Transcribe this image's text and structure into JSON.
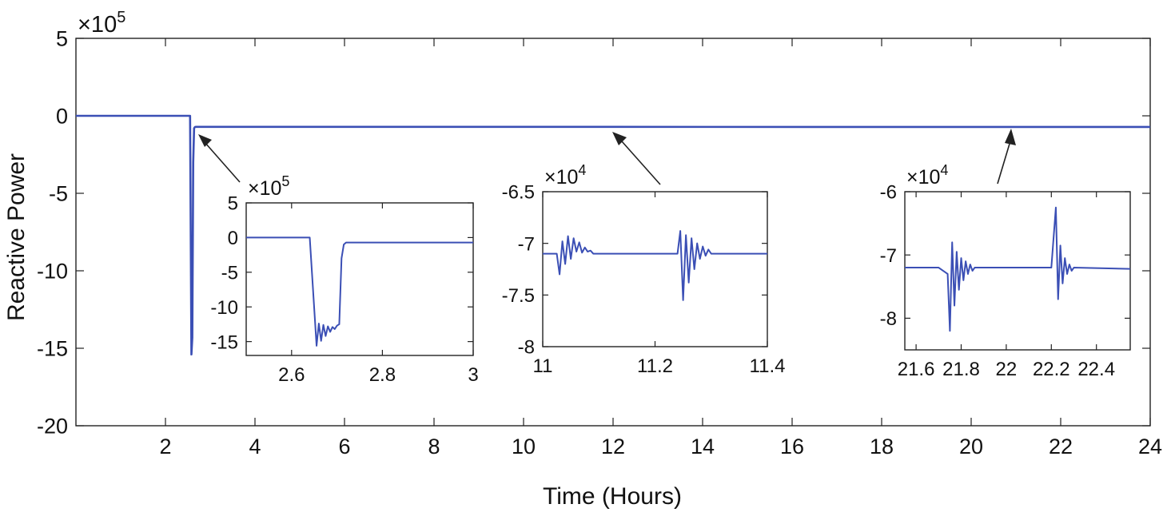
{
  "chart_data": {
    "type": "line",
    "xlabel": "Time (Hours)",
    "ylabel": "Reactive Power",
    "exponent_label": "×10",
    "exponent_power": "5",
    "xlim": [
      0,
      24
    ],
    "ylim": [
      -20,
      5
    ],
    "xticks": [
      "2",
      "4",
      "6",
      "8",
      "10",
      "12",
      "14",
      "16",
      "18",
      "20",
      "22",
      "24"
    ],
    "yticks": [
      "5",
      "0",
      "-5",
      "-10",
      "-15",
      "-20"
    ],
    "grid": false,
    "series": [
      {
        "color": "#3b4fb5",
        "x": [
          0,
          2.55,
          2.58,
          2.6,
          2.62,
          2.64,
          2.66,
          2.68,
          24
        ],
        "y": [
          0,
          0,
          -15.4,
          -14.3,
          -3,
          -0.8,
          -0.72,
          -0.71,
          -0.72
        ]
      }
    ],
    "insets": [
      {
        "exponent_label": "×10",
        "exponent_power": "5",
        "xlim": [
          2.5,
          3.0
        ],
        "ylim": [
          -17,
          5
        ],
        "xticks": [
          "2.6",
          "2.8",
          "3"
        ],
        "yticks": [
          "5",
          "0",
          "-5",
          "-10",
          "-15"
        ],
        "x": [
          2.5,
          2.64,
          2.655,
          2.66,
          2.665,
          2.67,
          2.675,
          2.68,
          2.685,
          2.69,
          2.695,
          2.7,
          2.705,
          2.71,
          2.715,
          2.72,
          3.0
        ],
        "y": [
          0,
          0,
          -15.6,
          -12.4,
          -14.9,
          -12.6,
          -14.2,
          -12.8,
          -13.6,
          -12.9,
          -13.2,
          -12.7,
          -12.5,
          -3,
          -1,
          -0.72,
          -0.72
        ]
      },
      {
        "exponent_label": "×10",
        "exponent_power": "4",
        "xlim": [
          11.0,
          11.4
        ],
        "ylim": [
          -8.0,
          -6.5
        ],
        "xticks": [
          "11",
          "11.2",
          "11.4"
        ],
        "yticks": [
          "-6.5",
          "-7",
          "-7.5",
          "-8"
        ],
        "x": [
          11.0,
          11.025,
          11.03,
          11.035,
          11.04,
          11.045,
          11.05,
          11.055,
          11.06,
          11.065,
          11.07,
          11.075,
          11.08,
          11.085,
          11.09,
          11.1,
          11.24,
          11.245,
          11.25,
          11.255,
          11.26,
          11.265,
          11.27,
          11.275,
          11.28,
          11.285,
          11.29,
          11.295,
          11.3,
          11.31,
          11.4
        ],
        "y": [
          -7.1,
          -7.1,
          -7.3,
          -6.98,
          -7.2,
          -6.93,
          -7.15,
          -6.95,
          -7.08,
          -6.99,
          -7.09,
          -7.04,
          -7.08,
          -7.07,
          -7.1,
          -7.1,
          -7.1,
          -6.88,
          -7.55,
          -6.92,
          -7.38,
          -6.95,
          -7.25,
          -7.0,
          -7.15,
          -7.03,
          -7.12,
          -7.06,
          -7.1,
          -7.1,
          -7.1
        ]
      },
      {
        "exponent_label": "×10",
        "exponent_power": "4",
        "xlim": [
          21.55,
          22.55
        ],
        "ylim": [
          -8.5,
          -6.0
        ],
        "xticks": [
          "21.6",
          "21.8",
          "22",
          "22.2",
          "22.4"
        ],
        "yticks": [
          "-6",
          "-7",
          "-8"
        ],
        "x": [
          21.55,
          21.7,
          21.74,
          21.75,
          21.76,
          21.77,
          21.78,
          21.79,
          21.8,
          21.81,
          21.82,
          21.83,
          21.84,
          21.85,
          21.86,
          21.9,
          22.2,
          22.22,
          22.23,
          22.24,
          22.25,
          22.26,
          22.27,
          22.28,
          22.29,
          22.3,
          22.55
        ],
        "y": [
          -7.2,
          -7.2,
          -7.3,
          -8.2,
          -6.8,
          -7.8,
          -6.95,
          -7.55,
          -7.05,
          -7.4,
          -7.1,
          -7.3,
          -7.15,
          -7.25,
          -7.2,
          -7.2,
          -7.2,
          -6.25,
          -7.7,
          -6.85,
          -7.45,
          -7.05,
          -7.3,
          -7.15,
          -7.25,
          -7.2,
          -7.22
        ]
      }
    ]
  }
}
